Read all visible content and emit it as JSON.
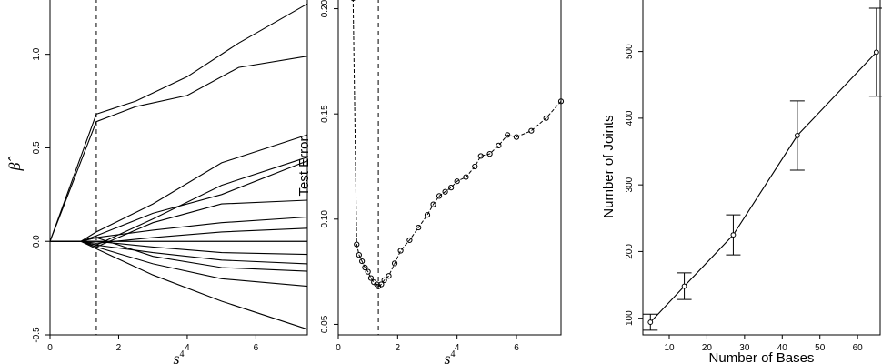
{
  "chart_data": [
    {
      "type": "line",
      "xlabel": "s",
      "xlabel_superscript": "4",
      "ylabel": "β̂",
      "xlim": [
        0,
        7.5
      ],
      "ylim": [
        -0.5,
        1.3
      ],
      "x_ticks": [
        0,
        2,
        4,
        6
      ],
      "y_ticks": [
        -0.5,
        0.0,
        0.5,
        1.0
      ],
      "y_tick_labels": [
        "-0.5",
        "0.0",
        "0.5",
        "1.0"
      ],
      "vline": 1.35,
      "series": [
        {
          "x": [
            0,
            1.35,
            2.5,
            4.0,
            5.5,
            7.5
          ],
          "values": [
            0,
            0.68,
            0.75,
            0.88,
            1.06,
            1.27
          ]
        },
        {
          "x": [
            0,
            1.35,
            2.5,
            4.0,
            5.5,
            7.5
          ],
          "values": [
            0,
            0.64,
            0.72,
            0.78,
            0.93,
            0.99
          ]
        },
        {
          "x": [
            0,
            0.9,
            1.35,
            3.0,
            5.0,
            7.5
          ],
          "values": [
            0,
            0,
            0.05,
            0.2,
            0.42,
            0.57
          ]
        },
        {
          "x": [
            0,
            0.9,
            1.35,
            3.0,
            5.0,
            7.5
          ],
          "values": [
            0,
            0,
            -0.02,
            0.12,
            0.3,
            0.45
          ]
        },
        {
          "x": [
            0,
            0.9,
            1.35,
            3.0,
            5.0,
            7.5
          ],
          "values": [
            0,
            0,
            0.03,
            0.15,
            0.25,
            0.43
          ]
        },
        {
          "x": [
            0,
            0.9,
            1.35,
            3.0,
            5.0,
            7.5
          ],
          "values": [
            0,
            0,
            -0.03,
            0.1,
            0.2,
            0.22
          ]
        },
        {
          "x": [
            0,
            0.9,
            1.35,
            3.0,
            5.0,
            7.5
          ],
          "values": [
            0,
            0,
            0.02,
            0.06,
            0.1,
            0.13
          ]
        },
        {
          "x": [
            0,
            0.9,
            1.35,
            3.0,
            5.0,
            7.5
          ],
          "values": [
            0,
            0,
            -0.01,
            0.02,
            0.05,
            0.07
          ]
        },
        {
          "x": [
            0,
            0.9,
            1.35,
            3.0,
            5.0,
            7.5
          ],
          "values": [
            0,
            0,
            0.0,
            -0.03,
            -0.06,
            -0.07
          ]
        },
        {
          "x": [
            0,
            0.9,
            1.35,
            3.0,
            5.0,
            7.5
          ],
          "values": [
            0,
            0,
            -0.02,
            -0.06,
            -0.1,
            -0.12
          ]
        },
        {
          "x": [
            0,
            0.9,
            1.35,
            3.0,
            5.0,
            7.5
          ],
          "values": [
            0,
            0,
            0.02,
            -0.08,
            -0.14,
            -0.16
          ]
        },
        {
          "x": [
            0,
            0.9,
            1.35,
            3.0,
            5.0,
            7.5
          ],
          "values": [
            0,
            0,
            -0.03,
            -0.12,
            -0.2,
            -0.24
          ]
        },
        {
          "x": [
            0,
            0.9,
            1.35,
            3.0,
            5.0,
            7.5
          ],
          "values": [
            0,
            0,
            -0.04,
            -0.18,
            -0.32,
            -0.47
          ]
        }
      ]
    },
    {
      "type": "line",
      "xlabel": "s",
      "xlabel_superscript": "4",
      "ylabel": "Test Error",
      "xlim": [
        0,
        7.5
      ],
      "ylim": [
        0.045,
        0.205
      ],
      "x_ticks": [
        0,
        2,
        4,
        6
      ],
      "y_ticks": [
        0.05,
        0.1,
        0.15,
        0.2
      ],
      "y_tick_labels": [
        "0.05",
        "0.10",
        "0.15",
        "0.20"
      ],
      "vline": 1.35,
      "x": [
        0.5,
        0.62,
        0.7,
        0.8,
        0.9,
        1.0,
        1.1,
        1.2,
        1.3,
        1.35,
        1.45,
        1.55,
        1.7,
        1.9,
        2.1,
        2.4,
        2.7,
        3.0,
        3.2,
        3.4,
        3.6,
        3.8,
        4.0,
        4.3,
        4.6,
        4.8,
        5.1,
        5.4,
        5.7,
        6.0,
        6.5,
        7.0,
        7.5
      ],
      "values": [
        0.205,
        0.088,
        0.083,
        0.08,
        0.077,
        0.075,
        0.072,
        0.07,
        0.069,
        0.068,
        0.069,
        0.071,
        0.073,
        0.079,
        0.085,
        0.09,
        0.096,
        0.102,
        0.107,
        0.111,
        0.113,
        0.115,
        0.118,
        0.12,
        0.125,
        0.13,
        0.131,
        0.135,
        0.14,
        0.139,
        0.142,
        0.148,
        0.156
      ]
    },
    {
      "type": "line",
      "xlabel": "Number of Bases",
      "ylabel": "Number of Joints",
      "xlim": [
        3,
        66
      ],
      "ylim": [
        75,
        580
      ],
      "x_ticks": [
        10,
        20,
        30,
        40,
        50,
        60
      ],
      "y_ticks": [
        100,
        200,
        300,
        400,
        500
      ],
      "x": [
        5,
        14,
        27,
        44,
        65
      ],
      "values": [
        94,
        148,
        225,
        374,
        499
      ],
      "error_bars": [
        12,
        20,
        30,
        52,
        66
      ]
    }
  ]
}
